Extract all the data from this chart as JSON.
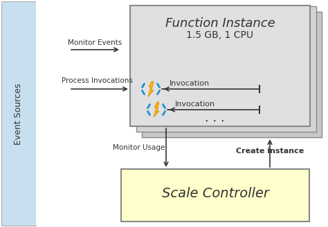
{
  "bg_color": "#ffffff",
  "event_sources_bg": "#c8dff0",
  "event_sources_text": "Event Sources",
  "scale_controller_bg": "#ffffcc",
  "scale_controller_border": "#888888",
  "scale_controller_text": "Scale Controller",
  "fi_bg_back2": "#c8c8c8",
  "fi_bg_back1": "#d4d4d4",
  "fi_bg_front": "#e0e0e0",
  "fi_border": "#888888",
  "function_instance_title": "Function Instance",
  "function_instance_subtitle": "1.5 GB, 1 CPU",
  "monitor_events_label": "Monitor Events",
  "monitor_usage_label": "Monitor Usage",
  "create_instance_label": "Create instance",
  "process_invocations_label": "Process Invocations",
  "invocation_label": "Invocation",
  "arrow_color": "#333333",
  "text_color": "#333333",
  "bolt_yellow": "#FFB300",
  "bolt_blue": "#1E8FD5"
}
